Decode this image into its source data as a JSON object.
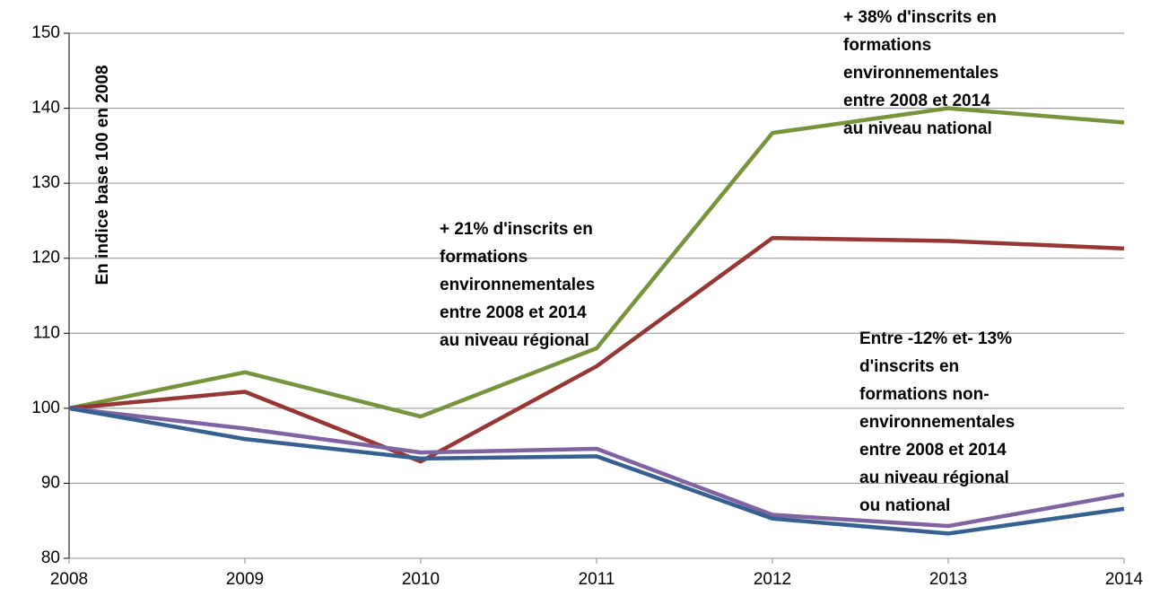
{
  "chart_data": {
    "type": "line",
    "y_label": "En indice base 100 en 2008",
    "x": [
      2008,
      2009,
      2010,
      2011,
      2012,
      2013,
      2014
    ],
    "xlim": [
      2008,
      2014
    ],
    "xticks": [
      2008,
      2009,
      2010,
      2011,
      2012,
      2013,
      2014
    ],
    "ylim": [
      80,
      150
    ],
    "yticks": [
      80,
      90,
      100,
      110,
      120,
      130,
      140,
      150
    ],
    "grid": true,
    "series": [
      {
        "color": "#77933c",
        "values": [
          100,
          104.8,
          98.9,
          108,
          136.7,
          140,
          138.1
        ]
      },
      {
        "color": "#953735",
        "values": [
          100,
          102.2,
          92.9,
          105.6,
          122.7,
          122.3,
          121.3
        ]
      },
      {
        "color": "#8064a2",
        "values": [
          100,
          97.3,
          94.1,
          94.6,
          85.8,
          84.3,
          88.5
        ]
      },
      {
        "color": "#376092",
        "values": [
          100,
          95.9,
          93.3,
          93.6,
          85.3,
          83.3,
          86.6
        ]
      }
    ],
    "annotations": [
      {
        "lines": [
          "+ 38% d'inscrits en",
          "formations",
          "environnementales",
          "entre 2008 et 2014",
          "au niveau national"
        ],
        "colors": [
          "#9bbb59",
          "#9bbb59",
          "#9bbb59",
          "#9bbb59",
          "#9bbb59"
        ]
      },
      {
        "lines": [
          "+ 21% d'inscrits en",
          "formations",
          "environnementales",
          "entre 2008 et 2014",
          "au niveau régional"
        ],
        "colors": [
          "#953735",
          "#953735",
          "#953735",
          "#953735",
          "#953735"
        ]
      },
      {
        "lines": [
          "Entre -12% et- 13%",
          "d'inscrits en",
          "formations non-",
          "environnementales",
          "entre 2008 et 2014",
          "au niveau régional",
          "ou national"
        ],
        "colors": [
          "#4f81bd",
          "#4f81bd",
          "#4f81bd",
          "#4f81bd",
          "#4f81bd",
          "#8064a2",
          "#4f81bd"
        ]
      }
    ]
  }
}
